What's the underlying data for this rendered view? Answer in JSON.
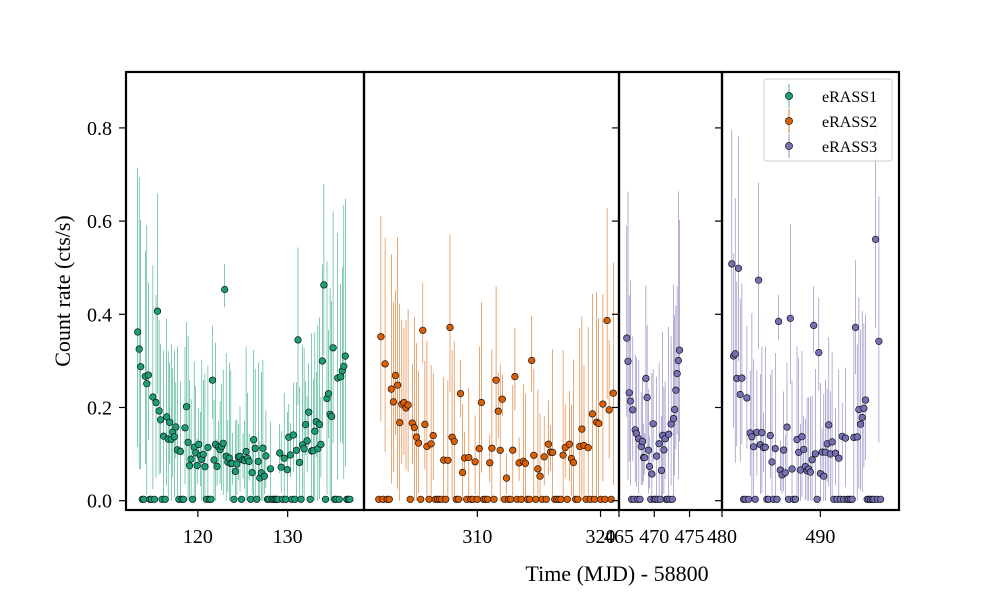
{
  "colors": {
    "eRASS1": "#1b9e77",
    "eRASS2": "#d95f02",
    "eRASS3": "#7570b3"
  },
  "chart_data": {
    "type": "scatter",
    "title": "",
    "xlabel": "Time (MJD) - 58800",
    "ylabel": "Count rate (cts/s)",
    "ylim": [
      -0.02,
      0.92
    ],
    "yticks": [
      0.0,
      0.2,
      0.4,
      0.6,
      0.8
    ],
    "ytick_labels": [
      "0.0",
      "0.2",
      "0.4",
      "0.6",
      "0.8"
    ],
    "legend": {
      "placement": "top-right",
      "entries": [
        "eRASS1",
        "eRASS2",
        "eRASS3"
      ]
    },
    "error_bars": true,
    "panels": [
      {
        "series": "eRASS1",
        "xlim": [
          112,
          138.5
        ],
        "xticks": [
          120,
          130
        ],
        "xtick_labels": [
          "120",
          "130"
        ],
        "x_start": 113.3,
        "x_step": 0.17,
        "n": 140,
        "peak": 0.48
      },
      {
        "series": "eRASS2",
        "xlim": [
          300.8,
          321.5
        ],
        "xticks": [
          310,
          320
        ],
        "xtick_labels": [
          "310",
          "320"
        ],
        "x_start": 302,
        "x_step": 0.17,
        "n": 120,
        "peak": 0.38
      },
      {
        "series": "eRASS3",
        "xlim": [
          465,
          479.6
        ],
        "xticks": [
          465,
          470,
          475
        ],
        "xtick_labels": [
          "465",
          "470",
          "475"
        ],
        "x_start": 466.1,
        "x_step": 0.17,
        "n": 45,
        "peak": 0.3
      },
      {
        "series": "eRASS3",
        "xlim": [
          480,
          498
        ],
        "xticks": [
          480,
          490
        ],
        "xtick_labels": [
          "480",
          "490"
        ],
        "x_start": 481,
        "x_step": 0.17,
        "n": 90,
        "peak": 0.48
      }
    ]
  }
}
